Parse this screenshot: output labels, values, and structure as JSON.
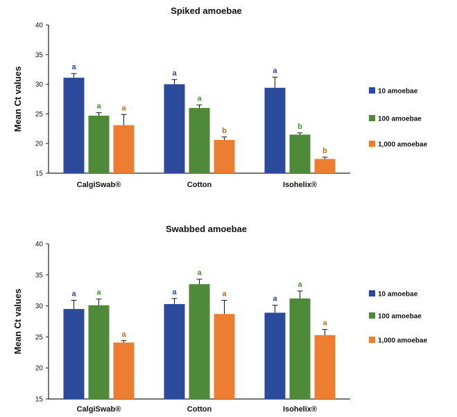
{
  "chart_data": [
    {
      "type": "bar",
      "title": "Spiked amoebae",
      "ylabel": "Mean Ct values",
      "ylim": [
        15,
        40
      ],
      "yticks": [
        15,
        20,
        25,
        30,
        35,
        40
      ],
      "categories": [
        "CalgiSwab®",
        "Cotton",
        "Isohelix®"
      ],
      "series": [
        {
          "name": "10 amoebae",
          "color": "#2b4a9c",
          "label_color": "#2b4a9c",
          "values": [
            31.1,
            30.0,
            29.4
          ],
          "errors": [
            0.7,
            0.8,
            1.8
          ],
          "letters": [
            "a",
            "a",
            "a"
          ]
        },
        {
          "name": "100 amoebae",
          "color": "#4e8a3a",
          "label_color": "#4e8a3a",
          "values": [
            24.7,
            26.0,
            21.5
          ],
          "errors": [
            0.5,
            0.5,
            0.3
          ],
          "letters": [
            "a",
            "a",
            "b"
          ]
        },
        {
          "name": "1,000 amoebae",
          "color": "#ed7d31",
          "label_color": "#c56a1e",
          "values": [
            23.1,
            20.6,
            17.4
          ],
          "errors": [
            1.8,
            0.5,
            0.3
          ],
          "letters": [
            "a",
            "b",
            "b"
          ]
        }
      ],
      "legend": "right"
    },
    {
      "type": "bar",
      "title": "Swabbed amoebae",
      "ylabel": "Mean Ct values",
      "ylim": [
        15,
        40
      ],
      "yticks": [
        15,
        20,
        25,
        30,
        35,
        40
      ],
      "categories": [
        "CalgiSwab®",
        "Cotton",
        "Isohelix®"
      ],
      "series": [
        {
          "name": "10 amoebae",
          "color": "#2b4a9c",
          "label_color": "#2b4a9c",
          "values": [
            29.5,
            30.3,
            28.9
          ],
          "errors": [
            1.4,
            0.9,
            1.2
          ],
          "letters": [
            "a",
            "a",
            "a"
          ]
        },
        {
          "name": "100 amoebae",
          "color": "#4e8a3a",
          "label_color": "#4e8a3a",
          "values": [
            30.1,
            33.5,
            31.2
          ],
          "errors": [
            1.0,
            0.8,
            1.2
          ],
          "letters": [
            "a",
            "a",
            "a"
          ]
        },
        {
          "name": "1,000 amoebae",
          "color": "#ed7d31",
          "label_color": "#c56a1e",
          "values": [
            24.1,
            28.7,
            25.3
          ],
          "errors": [
            0.3,
            2.2,
            0.9
          ],
          "letters": [
            "a",
            "a",
            "a"
          ]
        }
      ],
      "legend": "right"
    }
  ]
}
